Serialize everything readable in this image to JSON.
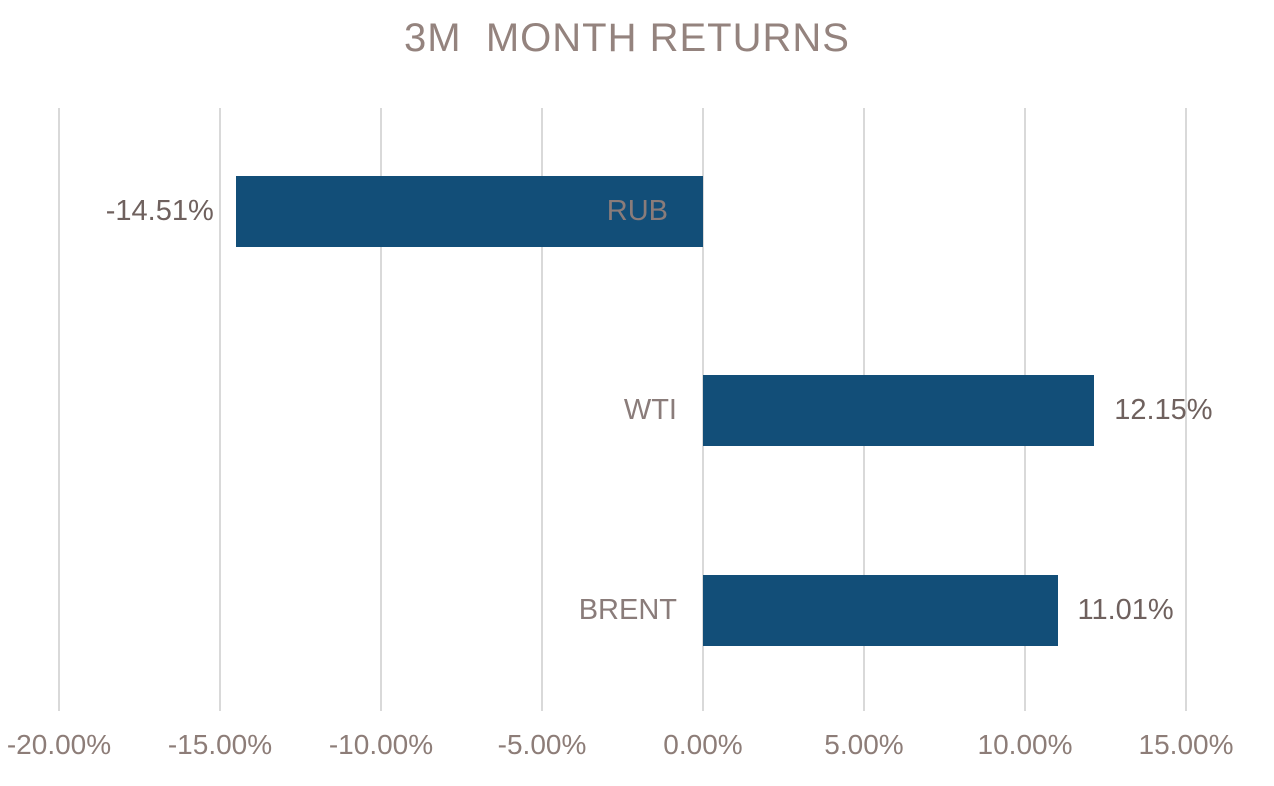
{
  "colors": {
    "background": "#FFFFFF",
    "bar_fill": "#124E78",
    "title_text": "#94837E",
    "axis_text": "#8D7D78",
    "category_text": "#8A7C7A",
    "data_label_text": "#6F615E",
    "gridline": "#D9D9D9"
  },
  "chart_data": {
    "type": "bar",
    "orientation": "horizontal",
    "title": "3M  MONTH RETURNS",
    "categories": [
      "RUB",
      "WTI",
      "BRENT"
    ],
    "values": [
      -14.51,
      12.15,
      11.01
    ],
    "data_labels": [
      "-14.51%",
      "12.15%",
      "11.01%"
    ],
    "x_ticks": [
      "-20.00%",
      "-15.00%",
      "-10.00%",
      "-5.00%",
      "0.00%",
      "5.00%",
      "10.00%",
      "15.00%"
    ],
    "x_tick_values": [
      -20,
      -15,
      -10,
      -5,
      0,
      5,
      10,
      15
    ],
    "xlim": [
      -20,
      15
    ],
    "grid": true,
    "legend": false,
    "data_label_position": "outside-end",
    "category_label_position": "opposite-axis-side"
  }
}
